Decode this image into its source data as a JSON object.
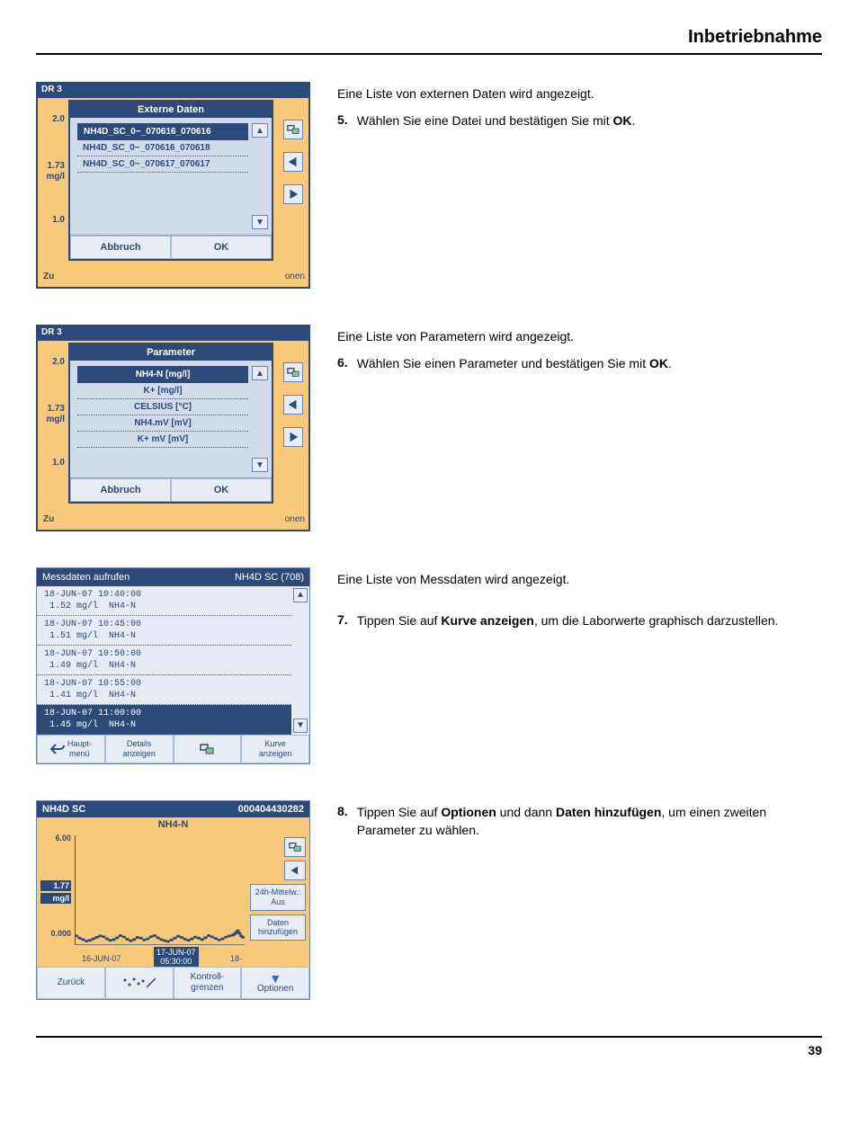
{
  "page": {
    "title": "Inbetriebnahme",
    "footer_page": "39"
  },
  "colors": {
    "frame_blue": "#2b4a7a",
    "panel_orange": "#f8c97a",
    "panel_light": "#e8ecf4",
    "dotted_red": "#c03030"
  },
  "section1": {
    "text1": "Eine Liste von externen Daten wird angezeigt.",
    "step_num": "5.",
    "step_prefix": "Wählen Sie eine Datei und bestätigen Sie mit ",
    "step_bold": "OK",
    "step_suffix": ".",
    "device_label": "DR 3",
    "dialog_title": "Externe Daten",
    "items": [
      "NH4D_SC_0~_070616_070616",
      "NH4D_SC_0~_070616_070618",
      "NH4D_SC_0~_070617_070617"
    ],
    "selected_index": 0,
    "cancel": "Abbruch",
    "ok": "OK",
    "ylabels": [
      "2.0",
      "1.73",
      "mg/l",
      "1.0"
    ],
    "bg_left": "Zu",
    "bg_right": "onen"
  },
  "section2": {
    "text1": "Eine Liste von Parametern wird angezeigt.",
    "step_num": "6.",
    "step_prefix": "Wählen Sie einen Parameter und bestätigen Sie mit ",
    "step_bold": "OK",
    "step_suffix": ".",
    "device_label": "DR 3",
    "dialog_title": "Parameter",
    "items": [
      "NH4-N [mg/l]",
      "K+ [mg/l]",
      "CELSIUS [°C]",
      "NH4.mV [mV]",
      "K+ mV [mV]"
    ],
    "selected_index": 0,
    "cancel": "Abbruch",
    "ok": "OK",
    "ylabels": [
      "2.0",
      "1.73",
      "mg/l",
      "1.0"
    ],
    "bg_left": "Zu",
    "bg_right": "onen"
  },
  "section3": {
    "text1": "Eine Liste von Messdaten wird angezeigt.",
    "step_num": "7.",
    "step_prefix": "Tippen Sie auf ",
    "step_bold": "Kurve anzeigen",
    "step_suffix": ", um die Laborwerte graphisch darzustellen.",
    "title_left": "Messdaten aufrufen",
    "title_right": "NH4D SC (708)",
    "rows": [
      {
        "l1": "18-JUN-07 10:40:00",
        "l2": " 1.52 mg/l  NH4-N"
      },
      {
        "l1": "18-JUN-07 10:45:00",
        "l2": " 1.51 mg/l  NH4-N"
      },
      {
        "l1": "18-JUN-07 10:50:00",
        "l2": " 1.49 mg/l  NH4-N"
      },
      {
        "l1": "18-JUN-07 10:55:00",
        "l2": " 1.41 mg/l  NH4-N"
      },
      {
        "l1": "18-JUN-07 11:00:00",
        "l2": " 1.45 mg/l  NH4-N"
      }
    ],
    "selected_index": 4,
    "btn1": "Haupt-\nmenü",
    "btn2": "Details\nanzeigen",
    "btn4": "Kurve\nanzeigen"
  },
  "section4": {
    "step_num": "8.",
    "step_prefix": "Tippen Sie auf ",
    "step_bold1": "Optionen",
    "step_mid": " und dann ",
    "step_bold2": "Daten hinzufügen",
    "step_suffix": ", um einen zweiten Parameter zu wählen.",
    "top_left": "NH4D SC",
    "top_right": "000404430282",
    "subtitle": "NH4-N",
    "y_top": "6.00",
    "y_mid": "1.77",
    "y_unit": "mg/l",
    "y_bot": "0.000",
    "x1": "16-JUN-07",
    "x2": "17-JUN-07\n05:30:00",
    "x3": "18-",
    "rbtn1": "24h-Mittelw.:\nAus",
    "rbtn2": "Daten\nhinzufügen",
    "bbtn1": "Zurück",
    "bbtn3": "Kontroll-\ngrenzen",
    "bbtn4": "Optionen",
    "chart": {
      "type": "line",
      "ylim": [
        0,
        6
      ],
      "marker_color": "#2b4a7a",
      "background": "#f8c97a",
      "points": [
        [
          0.01,
          0.5
        ],
        [
          0.03,
          0.38
        ],
        [
          0.05,
          0.3
        ],
        [
          0.07,
          0.22
        ],
        [
          0.09,
          0.26
        ],
        [
          0.11,
          0.34
        ],
        [
          0.13,
          0.42
        ],
        [
          0.15,
          0.5
        ],
        [
          0.17,
          0.46
        ],
        [
          0.19,
          0.34
        ],
        [
          0.21,
          0.26
        ],
        [
          0.23,
          0.3
        ],
        [
          0.25,
          0.4
        ],
        [
          0.27,
          0.52
        ],
        [
          0.29,
          0.44
        ],
        [
          0.31,
          0.32
        ],
        [
          0.33,
          0.24
        ],
        [
          0.35,
          0.3
        ],
        [
          0.37,
          0.42
        ],
        [
          0.39,
          0.38
        ],
        [
          0.41,
          0.28
        ],
        [
          0.43,
          0.34
        ],
        [
          0.45,
          0.46
        ],
        [
          0.47,
          0.52
        ],
        [
          0.49,
          0.4
        ],
        [
          0.51,
          0.3
        ],
        [
          0.53,
          0.24
        ],
        [
          0.55,
          0.2
        ],
        [
          0.57,
          0.28
        ],
        [
          0.59,
          0.38
        ],
        [
          0.61,
          0.48
        ],
        [
          0.63,
          0.42
        ],
        [
          0.65,
          0.32
        ],
        [
          0.67,
          0.26
        ],
        [
          0.69,
          0.34
        ],
        [
          0.71,
          0.44
        ],
        [
          0.73,
          0.38
        ],
        [
          0.75,
          0.3
        ],
        [
          0.77,
          0.4
        ],
        [
          0.79,
          0.52
        ],
        [
          0.81,
          0.44
        ],
        [
          0.83,
          0.36
        ],
        [
          0.85,
          0.28
        ],
        [
          0.87,
          0.34
        ],
        [
          0.89,
          0.44
        ],
        [
          0.91,
          0.5
        ],
        [
          0.93,
          0.54
        ],
        [
          0.94,
          0.6
        ],
        [
          0.95,
          0.68
        ],
        [
          0.96,
          0.78
        ],
        [
          0.97,
          0.64
        ],
        [
          0.98,
          0.5
        ],
        [
          0.99,
          0.42
        ]
      ]
    }
  }
}
